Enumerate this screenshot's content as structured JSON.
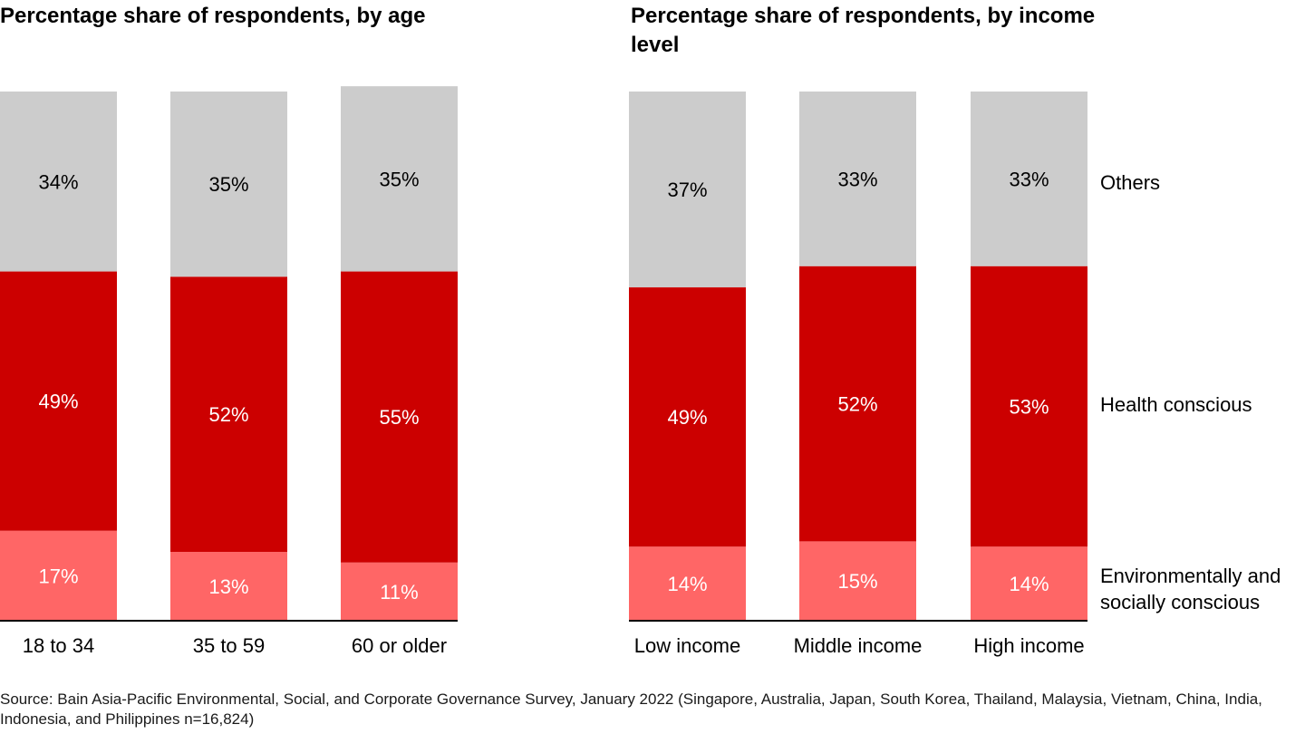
{
  "colors": {
    "others": "#CCCCCC",
    "health": "#CC0000",
    "env": "#FF6666",
    "axis": "#000000",
    "label_dark": "#000000",
    "label_light": "#FFFFFF"
  },
  "chart_data": [
    {
      "type": "bar",
      "stacked": true,
      "title": "Percentage share of respondents, by age",
      "categories": [
        "18 to 34",
        "35 to 59",
        "60 or older"
      ],
      "series": [
        {
          "name": "Environmentally and socially conscious",
          "values": [
            17,
            13,
            11
          ],
          "labels": [
            "17%",
            "13%",
            "11%"
          ]
        },
        {
          "name": "Health conscious",
          "values": [
            49,
            52,
            55
          ],
          "labels": [
            "49%",
            "52%",
            "55%"
          ]
        },
        {
          "name": "Others",
          "values": [
            34,
            35,
            35
          ],
          "labels": [
            "34%",
            "35%",
            "35%"
          ]
        }
      ],
      "ylim": [
        0,
        100
      ],
      "grid": false
    },
    {
      "type": "bar",
      "stacked": true,
      "title": "Percentage share of respondents, by income level",
      "categories": [
        "Low income",
        "Middle income",
        "High income"
      ],
      "series": [
        {
          "name": "Environmentally and socially conscious",
          "values": [
            14,
            15,
            14
          ],
          "labels": [
            "14%",
            "15%",
            "14%"
          ]
        },
        {
          "name": "Health conscious",
          "values": [
            49,
            52,
            53
          ],
          "labels": [
            "49%",
            "52%",
            "53%"
          ]
        },
        {
          "name": "Others",
          "values": [
            37,
            33,
            33
          ],
          "labels": [
            "37%",
            "33%",
            "33%"
          ]
        }
      ],
      "ylim": [
        0,
        100
      ],
      "grid": false,
      "legend_position": "right"
    }
  ],
  "legend": {
    "others": "Others",
    "health": "Health conscious",
    "env_line1": "Environmentally and",
    "env_line2": "socially conscious"
  },
  "source": "Source: Bain Asia-Pacific Environmental, Social, and Corporate Governance Survey, January 2022 (Singapore, Australia, Japan, South Korea, Thailand, Malaysia, Vietnam, China, India, Indonesia, and Philippines n=16,824)"
}
